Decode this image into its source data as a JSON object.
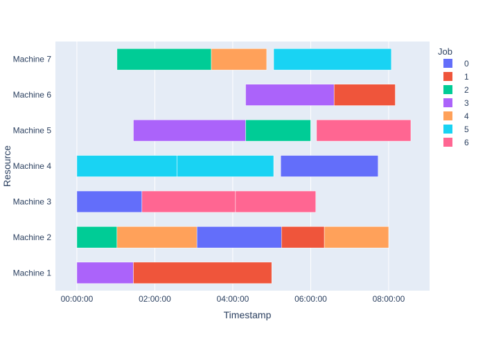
{
  "chart_data": {
    "type": "timeline",
    "xlabel": "Timestamp",
    "ylabel": "Resource",
    "legend_title": "Job",
    "legend_placement": "right",
    "grid": true,
    "x_tick_labels": [
      "00:00:00",
      "02:00:00",
      "04:00:00",
      "06:00:00",
      "08:00:00"
    ],
    "x_ticks_hours": [
      0,
      2,
      4,
      6,
      8
    ],
    "xlim_hours": [
      -0.55,
      9.05
    ],
    "categories": [
      "Machine 1",
      "Machine 2",
      "Machine 3",
      "Machine 4",
      "Machine 5",
      "Machine 6",
      "Machine 7"
    ],
    "jobs": [
      {
        "name": "0",
        "color": "#636efa"
      },
      {
        "name": "1",
        "color": "#ef553b"
      },
      {
        "name": "2",
        "color": "#00cc96"
      },
      {
        "name": "3",
        "color": "#ab63fa"
      },
      {
        "name": "4",
        "color": "#ffa15a"
      },
      {
        "name": "5",
        "color": "#19d3f3"
      },
      {
        "name": "6",
        "color": "#ff6692"
      }
    ],
    "tasks": [
      {
        "resource": "Machine 1",
        "job": "3",
        "start": 0.0,
        "end": 1.45
      },
      {
        "resource": "Machine 1",
        "job": "1",
        "start": 1.45,
        "end": 5.0
      },
      {
        "resource": "Machine 2",
        "job": "2",
        "start": 0.0,
        "end": 1.03
      },
      {
        "resource": "Machine 2",
        "job": "4",
        "start": 1.03,
        "end": 3.08
      },
      {
        "resource": "Machine 2",
        "job": "0",
        "start": 3.08,
        "end": 5.25
      },
      {
        "resource": "Machine 2",
        "job": "1",
        "start": 5.25,
        "end": 6.35
      },
      {
        "resource": "Machine 2",
        "job": "4",
        "start": 6.35,
        "end": 8.0
      },
      {
        "resource": "Machine 3",
        "job": "0",
        "start": 0.0,
        "end": 1.67
      },
      {
        "resource": "Machine 3",
        "job": "6",
        "start": 1.67,
        "end": 4.07
      },
      {
        "resource": "Machine 3",
        "job": "6",
        "start": 4.07,
        "end": 6.13
      },
      {
        "resource": "Machine 4",
        "job": "5",
        "start": 0.0,
        "end": 2.57
      },
      {
        "resource": "Machine 4",
        "job": "5",
        "start": 2.57,
        "end": 5.05
      },
      {
        "resource": "Machine 4",
        "job": "0",
        "start": 5.23,
        "end": 7.73
      },
      {
        "resource": "Machine 5",
        "job": "3",
        "start": 1.45,
        "end": 4.33
      },
      {
        "resource": "Machine 5",
        "job": "2",
        "start": 4.33,
        "end": 6.0
      },
      {
        "resource": "Machine 5",
        "job": "6",
        "start": 6.15,
        "end": 8.57
      },
      {
        "resource": "Machine 6",
        "job": "3",
        "start": 4.33,
        "end": 6.6
      },
      {
        "resource": "Machine 6",
        "job": "1",
        "start": 6.6,
        "end": 8.17
      },
      {
        "resource": "Machine 7",
        "job": "2",
        "start": 1.03,
        "end": 3.45
      },
      {
        "resource": "Machine 7",
        "job": "4",
        "start": 3.45,
        "end": 4.87
      },
      {
        "resource": "Machine 7",
        "job": "5",
        "start": 5.05,
        "end": 8.07
      }
    ]
  }
}
